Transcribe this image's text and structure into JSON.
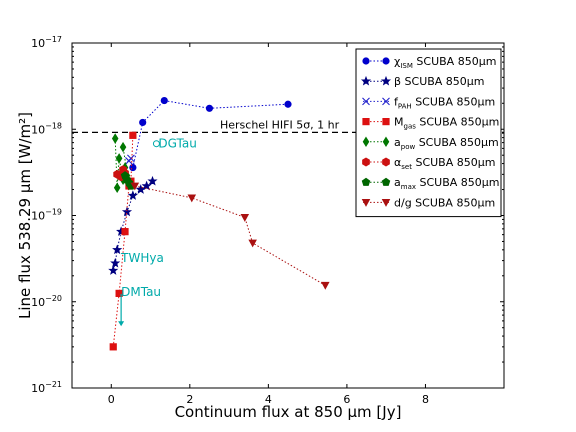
{
  "chart_data": {
    "type": "scatter",
    "xlabel": "Continuum flux at 850 μm [Jy]",
    "ylabel": "Line flux 538.29 μm [W/m²]",
    "xlim": [
      -1,
      10
    ],
    "ylim": [
      1e-21,
      1e-17
    ],
    "yscale": "log",
    "grid": false,
    "legend_position": "top-right",
    "x_ticks": [
      {
        "value": 0,
        "label": "0"
      },
      {
        "value": 2,
        "label": "2"
      },
      {
        "value": 4,
        "label": "4"
      },
      {
        "value": 6,
        "label": "6"
      },
      {
        "value": 8,
        "label": "8"
      }
    ],
    "y_ticks": [
      {
        "value": 1e-21,
        "base": "10",
        "exp": "−21"
      },
      {
        "value": 1e-20,
        "base": "10",
        "exp": "−20"
      },
      {
        "value": 1e-19,
        "base": "10",
        "exp": "−19"
      },
      {
        "value": 1e-18,
        "base": "10",
        "exp": "−18"
      },
      {
        "value": 1e-17,
        "base": "10",
        "exp": "−17"
      }
    ],
    "hline": {
      "y": 9.2e-19,
      "label": "Herschel HIFI 5σ, 1 hr",
      "color": "#000000"
    },
    "series": [
      {
        "name": "χISM SCUBA 850μm",
        "legend": {
          "main": "χ",
          "sub": "ISM",
          "rest": " SCUBA 850μm"
        },
        "color": "#0000cc",
        "marker": "circle",
        "points": [
          [
            0.55,
            3.6e-19
          ],
          [
            0.8,
            1.2e-18
          ],
          [
            1.35,
            2.15e-18
          ],
          [
            2.5,
            1.75e-18
          ],
          [
            4.5,
            1.95e-18
          ]
        ]
      },
      {
        "name": "β SCUBA 850μm",
        "legend": {
          "main": "β",
          "sub": "",
          "rest": " SCUBA 850μm"
        },
        "color": "#000080",
        "marker": "star",
        "points": [
          [
            0.05,
            2.3e-20
          ],
          [
            0.1,
            2.8e-20
          ],
          [
            0.15,
            4e-20
          ],
          [
            0.25,
            6.5e-20
          ],
          [
            0.4,
            1.1e-19
          ],
          [
            0.55,
            1.7e-19
          ],
          [
            0.75,
            2e-19
          ],
          [
            0.9,
            2.2e-19
          ],
          [
            1.05,
            2.5e-19
          ]
        ]
      },
      {
        "name": "fPAH SCUBA 850μm",
        "legend": {
          "main": "f",
          "sub": "PAH",
          "rest": " SCUBA 850μm"
        },
        "color": "#2222cc",
        "marker": "x",
        "points": [
          [
            0.45,
            4.3e-19
          ],
          [
            0.5,
            4.6e-19
          ]
        ]
      },
      {
        "name": "Mgas SCUBA 850μm",
        "legend": {
          "main": "M",
          "sub": "gas",
          "rest": " SCUBA 850μm"
        },
        "color": "#dd1111",
        "marker": "square",
        "points": [
          [
            0.05,
            3e-21
          ],
          [
            0.2,
            1.25e-20
          ],
          [
            0.35,
            6.5e-20
          ],
          [
            0.45,
            2.2e-19
          ],
          [
            0.5,
            2.5e-19
          ],
          [
            0.55,
            8.5e-19
          ]
        ]
      },
      {
        "name": "apow SCUBA 850μm",
        "legend": {
          "main": "a",
          "sub": "pow",
          "rest": " SCUBA 850μm"
        },
        "color": "#007700",
        "marker": "diamond",
        "points": [
          [
            0.1,
            7.8e-19
          ],
          [
            0.15,
            2.1e-19
          ],
          [
            0.2,
            4.6e-19
          ],
          [
            0.3,
            2.6e-19
          ],
          [
            0.35,
            3.6e-19
          ],
          [
            0.4,
            2.9e-19
          ],
          [
            0.45,
            2.3e-19
          ],
          [
            0.3,
            6.2e-19
          ]
        ]
      },
      {
        "name": "αset SCUBA 850μm",
        "legend": {
          "main": "α",
          "sub": "set",
          "rest": " SCUBA 850μm"
        },
        "color": "#cc1111",
        "marker": "hexagon",
        "points": [
          [
            0.15,
            3e-19
          ],
          [
            0.25,
            2.8e-19
          ],
          [
            0.35,
            3.1e-19
          ],
          [
            0.45,
            2.5e-19
          ],
          [
            0.3,
            3.4e-19
          ]
        ]
      },
      {
        "name": "amax SCUBA 850μm",
        "legend": {
          "main": "a",
          "sub": "max",
          "rest": " SCUBA 850μm"
        },
        "color": "#006600",
        "marker": "pentagon",
        "points": [
          [
            0.35,
            2.9e-19
          ],
          [
            0.4,
            2.6e-19
          ],
          [
            0.45,
            2.4e-19
          ],
          [
            0.5,
            2.2e-19
          ]
        ]
      },
      {
        "name": "d/g SCUBA 850μm",
        "legend": {
          "main": "d/g",
          "sub": "",
          "rest": " SCUBA 850μm"
        },
        "color": "#aa1111",
        "marker": "triangle-down",
        "points": [
          [
            0.6,
            2.2e-19
          ],
          [
            2.05,
            1.6e-19
          ],
          [
            3.4,
            9.5e-20
          ],
          [
            3.6,
            4.8e-20
          ],
          [
            5.45,
            1.55e-20
          ]
        ]
      }
    ],
    "annotations": [
      {
        "label": "DGTau",
        "x": 1.15,
        "y": 6.8e-19,
        "arrow_to": null,
        "color": "#00aaaa"
      },
      {
        "label": "TWHya",
        "x": 0.2,
        "y": 3.2e-20,
        "arrow_to": null,
        "color": "#00aaaa"
      },
      {
        "label": "DMTau",
        "x": 0.2,
        "y": 1.3e-20,
        "arrow_to": 5.2e-21,
        "color": "#00aaaa"
      }
    ]
  }
}
